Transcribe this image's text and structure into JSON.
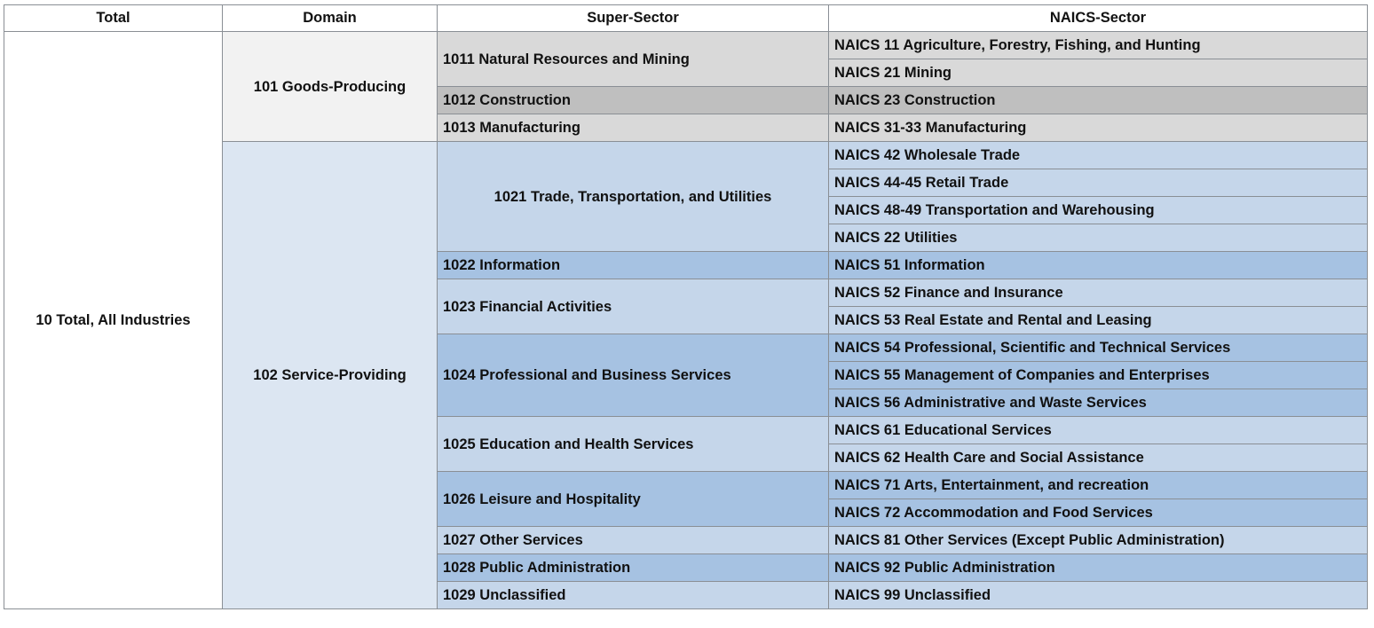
{
  "headers": {
    "total": "Total",
    "domain": "Domain",
    "super_sector": "Super-Sector",
    "naics_sector": "NAICS-Sector"
  },
  "total_label": "10 Total, All Industries",
  "domains": {
    "goods": "101 Goods-Producing",
    "service": "102 Service-Providing"
  },
  "super_sectors": [
    "1011 Natural Resources and Mining",
    "1012 Construction",
    "1013 Manufacturing",
    "1021 Trade, Transportation, and Utilities",
    "1022 Information",
    "1023 Financial Activities",
    "1024 Professional and Business Services",
    "1025 Education and Health Services",
    "1026 Leisure and Hospitality",
    "1027 Other Services",
    "1028 Public Administration",
    "1029 Unclassified"
  ],
  "naics_sectors": [
    "NAICS 11 Agriculture, Forestry, Fishing, and Hunting",
    "NAICS 21 Mining",
    "NAICS 23 Construction",
    "NAICS 31-33 Manufacturing",
    "NAICS 42 Wholesale Trade",
    "NAICS 44-45 Retail Trade",
    "NAICS 48-49 Transportation and Warehousing",
    "NAICS 22 Utilities",
    "NAICS 51 Information",
    "NAICS 52 Finance and Insurance",
    "NAICS 53 Real Estate and Rental and Leasing",
    "NAICS 54 Professional, Scientific and Technical Services",
    "NAICS 55 Management of Companies and Enterprises",
    "NAICS 56 Administrative and Waste Services",
    "NAICS 61 Educational Services",
    "NAICS 62 Health Care and Social Assistance",
    "NAICS 71 Arts, Entertainment, and recreation",
    "NAICS 72 Accommodation and Food Services",
    "NAICS 81 Other Services (Except Public Administration)",
    "NAICS 92 Public Administration",
    "NAICS 99 Unclassified"
  ],
  "colors": {
    "goods_domain": "#f2f2f2",
    "goods_light": "#d9d9d9",
    "goods_dark": "#bfbfbf",
    "service_domain": "#dce6f2",
    "service_light": "#c5d6ea",
    "service_dark": "#a6c2e2",
    "border": "#8a8f95"
  }
}
